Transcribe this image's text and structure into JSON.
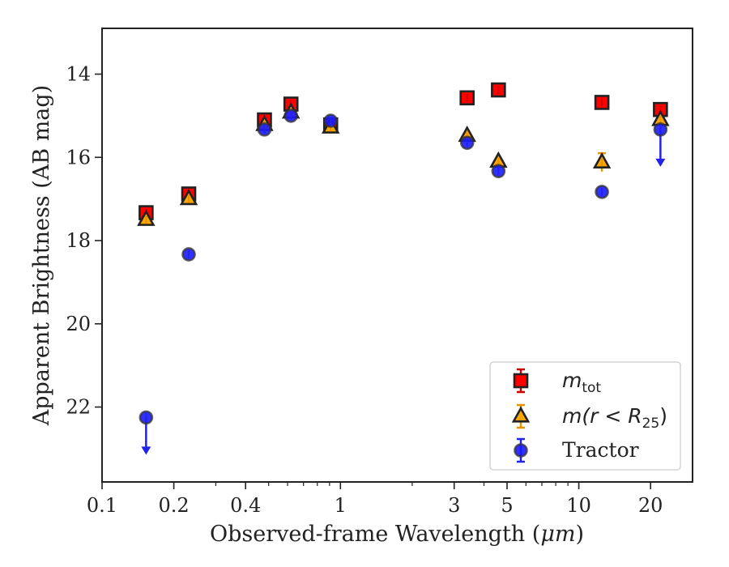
{
  "chart_data": {
    "type": "scatter",
    "xlabel": "Observed-frame Wavelength (μm)",
    "xlabel_pre": "Observed-frame Wavelength (",
    "xlabel_unit": "μm",
    "xlabel_post": ")",
    "ylabel": "Apparent Brightness (AB mag)",
    "xscale": "log",
    "xlim": [
      0.1,
      30
    ],
    "ylim": [
      23.8,
      12.9
    ],
    "y_inverted": true,
    "grid": false,
    "legend_position": "lower-right",
    "x_ticks": [
      {
        "value": 0.1,
        "label": "0.1"
      },
      {
        "value": 0.2,
        "label": "0.2"
      },
      {
        "value": 0.4,
        "label": "0.4"
      },
      {
        "value": 1,
        "label": "1"
      },
      {
        "value": 3,
        "label": "3"
      },
      {
        "value": 5,
        "label": "5"
      },
      {
        "value": 10,
        "label": "10"
      },
      {
        "value": 20,
        "label": "20"
      }
    ],
    "y_ticks": [
      {
        "value": 14,
        "label": "14"
      },
      {
        "value": 16,
        "label": "16"
      },
      {
        "value": 18,
        "label": "18"
      },
      {
        "value": 20,
        "label": "20"
      },
      {
        "value": 22,
        "label": "22"
      }
    ],
    "series": [
      {
        "name": "m_tot",
        "legend_main": "m",
        "legend_sub": "tot",
        "marker": "square",
        "color": "#ff0000",
        "errcolor": "#cc0000",
        "points": [
          {
            "x": 0.153,
            "y": 17.33
          },
          {
            "x": 0.231,
            "y": 16.88
          },
          {
            "x": 0.48,
            "y": 15.1
          },
          {
            "x": 0.62,
            "y": 14.72
          },
          {
            "x": 0.91,
            "y": 15.22
          },
          {
            "x": 3.4,
            "y": 14.57
          },
          {
            "x": 4.6,
            "y": 14.38
          },
          {
            "x": 12.5,
            "y": 14.68
          },
          {
            "x": 22.0,
            "y": 14.85
          }
        ]
      },
      {
        "name": "m(r < R25)",
        "legend_main": "m(r < R",
        "legend_sub": "25",
        "legend_post": ")",
        "marker": "triangle",
        "color": "#ffa500",
        "errcolor": "#e69500",
        "points": [
          {
            "x": 0.153,
            "y": 17.5
          },
          {
            "x": 0.231,
            "y": 17.0
          },
          {
            "x": 0.48,
            "y": 15.22
          },
          {
            "x": 0.62,
            "y": 14.92
          },
          {
            "x": 0.91,
            "y": 15.28
          },
          {
            "x": 3.4,
            "y": 15.48
          },
          {
            "x": 4.6,
            "y": 16.1
          },
          {
            "x": 12.5,
            "y": 16.12,
            "err": 0.22
          },
          {
            "x": 22.0,
            "y": 15.1
          }
        ]
      },
      {
        "name": "Tractor",
        "legend_main": "Tractor",
        "marker": "circle",
        "color": "#1a1aff",
        "errcolor": "#2222ee",
        "points": [
          {
            "x": 0.153,
            "y": 22.25,
            "upper_limit": true
          },
          {
            "x": 0.231,
            "y": 18.33
          },
          {
            "x": 0.48,
            "y": 15.33
          },
          {
            "x": 0.62,
            "y": 15.0
          },
          {
            "x": 0.91,
            "y": 15.12
          },
          {
            "x": 3.4,
            "y": 15.65
          },
          {
            "x": 4.6,
            "y": 16.33
          },
          {
            "x": 12.5,
            "y": 16.83
          },
          {
            "x": 22.0,
            "y": 15.33,
            "upper_limit": true
          }
        ]
      }
    ]
  }
}
